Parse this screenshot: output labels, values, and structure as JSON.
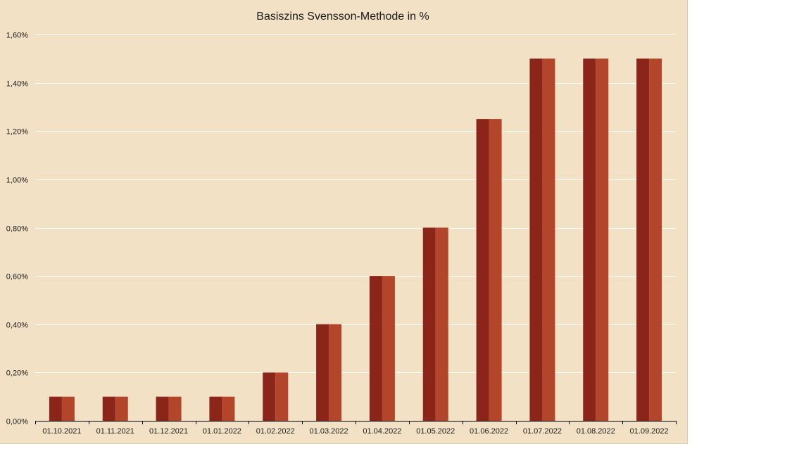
{
  "chart_data": {
    "type": "bar",
    "title": "Basiszins Svensson-Methode in %",
    "xlabel": "",
    "ylabel": "",
    "categories": [
      "01.10.2021",
      "01.11.2021",
      "01.12.2021",
      "01.01.2022",
      "01.02.2022",
      "01.03.2022",
      "01.04.2022",
      "01.05.2022",
      "01.06.2022",
      "01.07.2022",
      "01.08.2022",
      "01.09.2022"
    ],
    "values": [
      0.1,
      0.1,
      0.1,
      0.1,
      0.2,
      0.4,
      0.6,
      0.8,
      1.25,
      1.5,
      1.5,
      1.5
    ],
    "ylim": [
      0,
      1.6
    ],
    "yticks": [
      0,
      0.2,
      0.4,
      0.6,
      0.8,
      1.0,
      1.2,
      1.4,
      1.6
    ],
    "ytick_labels": [
      "0,00%",
      "0,20%",
      "0,40%",
      "0,60%",
      "0,80%",
      "1,00%",
      "1,20%",
      "1,40%",
      "1,60%"
    ],
    "grid": true,
    "legend": "none",
    "colors": {
      "background": "#f3e1c5",
      "bar_dark": "#8b2419",
      "bar_light": "#b3462a",
      "gridline": "#ffffff",
      "axis": "#000000"
    }
  }
}
